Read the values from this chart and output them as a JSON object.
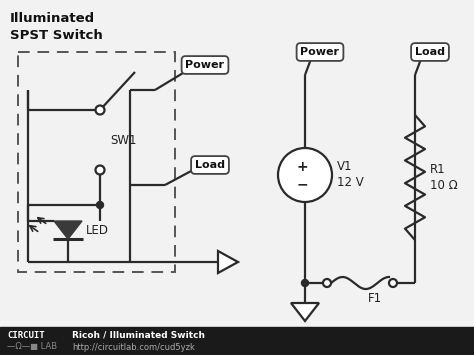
{
  "bg_color": "#f2f2f2",
  "footer_color": "#1a1a1a",
  "line_color": "#2a2a2a",
  "title": "Illuminated\nSPST Switch",
  "footer_text1": "Ricoh / Illuminated Switch",
  "footer_text2": "http://circuitlab.com/cud5yzk"
}
